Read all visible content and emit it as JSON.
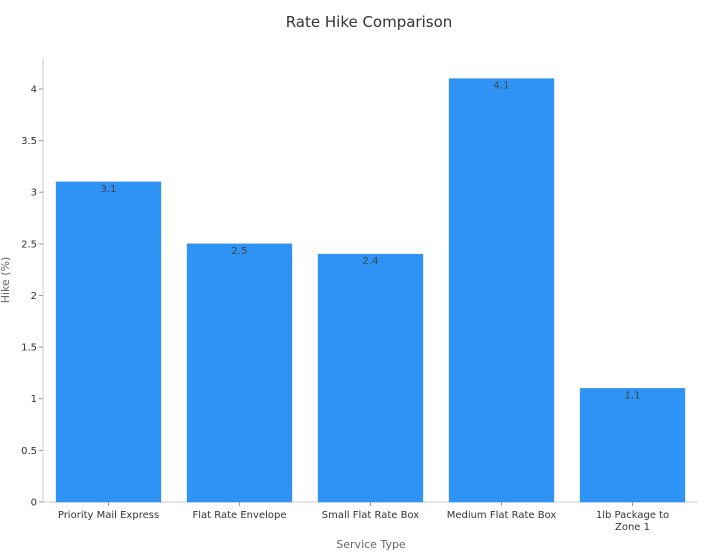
{
  "chart_data": {
    "type": "bar",
    "title": "Rate Hike Comparison",
    "xlabel": "Service Type",
    "ylabel": "Hike (%)",
    "categories": [
      [
        "Priority Mail Express"
      ],
      [
        "Flat Rate Envelope"
      ],
      [
        "Small Flat Rate Box"
      ],
      [
        "Medium Flat Rate Box"
      ],
      [
        "1lb Package to",
        "Zone 1"
      ]
    ],
    "values": [
      3.1,
      2.5,
      2.4,
      4.1,
      1.1
    ],
    "data_labels": [
      "3.1",
      "2.5",
      "2.4",
      "4.1",
      "1.1"
    ],
    "ylim": [
      0,
      4.3
    ],
    "yticks": [
      0,
      0.5,
      1,
      1.5,
      2,
      2.5,
      3,
      3.5,
      4
    ],
    "ytick_labels": [
      "0",
      "0.5",
      "1",
      "1.5",
      "2",
      "2.5",
      "3",
      "3.5",
      "4"
    ],
    "grid": false,
    "legend": "none",
    "colors": {
      "bar": "#2e93f5",
      "bar_edge": "#2787e8"
    }
  }
}
